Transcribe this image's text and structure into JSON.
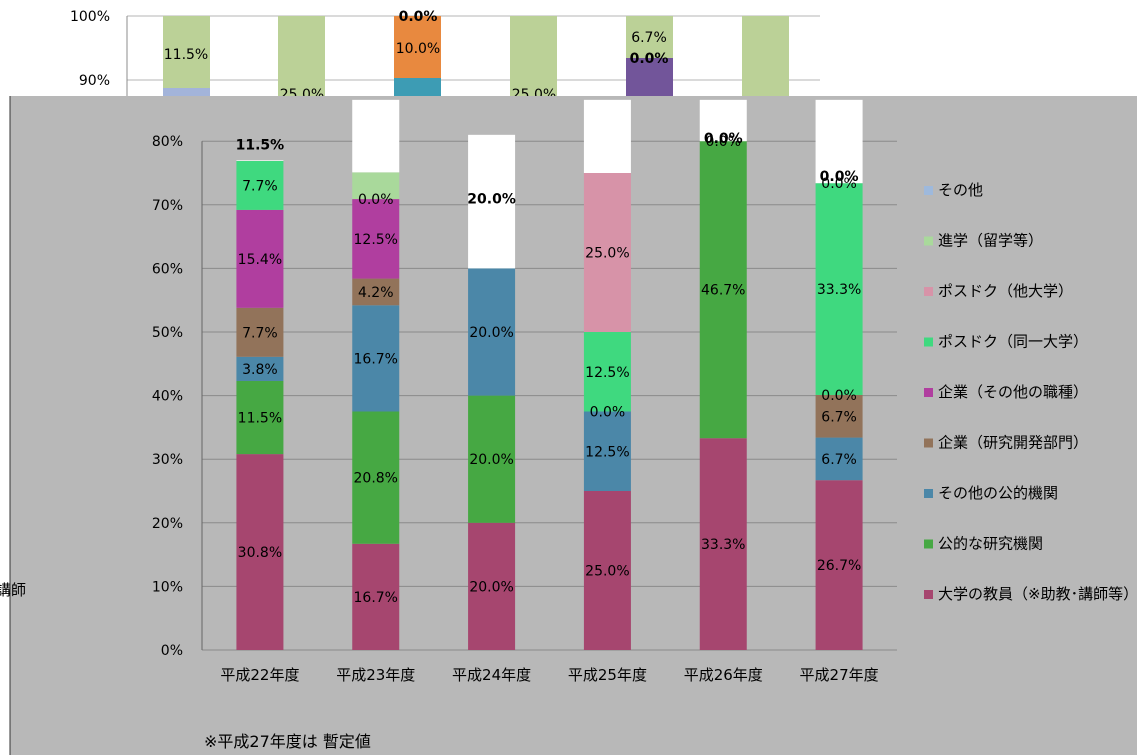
{
  "chart_data": {
    "type": "bar",
    "stacked": true,
    "categories": [
      "平成22年度",
      "平成23年度",
      "平成24年度",
      "平成25年度",
      "平成26年度",
      "平成27年度"
    ],
    "ylim": [
      0,
      100
    ],
    "y_ticks": [
      "0%",
      "10%",
      "20%",
      "30%",
      "40%",
      "50%",
      "60%",
      "70%",
      "80%",
      "90%",
      "100%"
    ],
    "series": [
      {
        "name": "大学の教員（※助教･講師等）",
        "color": "#A6466F",
        "values": [
          30.8,
          16.7,
          20.0,
          25.0,
          33.3,
          26.7
        ],
        "labels": [
          "30.8%",
          "16.7%",
          "20.0%",
          "25.0%",
          "33.3%",
          "26.7%"
        ]
      },
      {
        "name": "公的な研究機関",
        "color": "#46A843",
        "values": [
          11.5,
          20.8,
          20.0,
          0.0,
          46.7,
          0.0
        ],
        "labels": [
          "11.5%",
          "20.8%",
          "20.0%",
          "",
          "46.7%",
          ""
        ]
      },
      {
        "name": "その他の公的機関",
        "color": "#4B87A8",
        "values": [
          3.8,
          16.7,
          20.0,
          12.5,
          0.0,
          6.7
        ],
        "labels": [
          "3.8%",
          "16.7%",
          "20.0%",
          "12.5%",
          "",
          "6.7%"
        ]
      },
      {
        "name": "企業（研究開発部門）",
        "color": "#92735A",
        "values": [
          7.7,
          4.2,
          0.0,
          0.0,
          0.0,
          6.7
        ],
        "labels": [
          "7.7%",
          "4.2%",
          "",
          "0.0%",
          "",
          "6.7%"
        ]
      },
      {
        "name": "企業（その他の職種）",
        "color": "#B03E9F",
        "values": [
          15.4,
          12.5,
          0.0,
          0.0,
          0.0,
          0.0
        ],
        "labels": [
          "15.4%",
          "12.5%",
          "",
          "",
          "",
          "0.0%"
        ]
      },
      {
        "name": "ポスドク（同一大学）",
        "color": "#3FD97F",
        "values": [
          7.7,
          0.0,
          0.0,
          12.5,
          0.0,
          33.3
        ],
        "labels": [
          "7.7%",
          "0.0%",
          "",
          "12.5%",
          "0.0%",
          "33.3%"
        ]
      },
      {
        "name": "ポスドク（他大学）",
        "color": "#D793A8",
        "values": [
          0.0,
          0.0,
          0.0,
          25.0,
          0.0,
          0.0
        ],
        "labels": [
          "",
          "",
          "",
          "25.0%",
          "",
          "0.0%"
        ]
      },
      {
        "name": "進学（留学等）",
        "color": "#A9D99B",
        "values": [
          0.0,
          4.2,
          0.0,
          0.0,
          0.0,
          0.0
        ],
        "labels": [
          "",
          "",
          "",
          "",
          "",
          ""
        ]
      },
      {
        "name": "その他",
        "color": "#9EB9DC",
        "values": [
          0.0,
          0.0,
          0.0,
          0.0,
          0.0,
          0.0
        ],
        "labels": [
          "",
          "",
          "",
          "",
          "",
          ""
        ]
      }
    ],
    "overlay_labels": [
      {
        "cat": 0,
        "y": 79.5,
        "text": "11.5%"
      },
      {
        "cat": 2,
        "y": 71.0,
        "text": "20.0%"
      },
      {
        "cat": 4,
        "y": 80.5,
        "text": "0.0%"
      },
      {
        "cat": 5,
        "y": 74.5,
        "text": "0.0%"
      }
    ],
    "legend_position": "right"
  },
  "background_fragment": {
    "y_ticks": [
      "90%",
      "100%"
    ],
    "labels": [
      "11.5%",
      "25.0%",
      "0.0%",
      "10.0%",
      "25.0%",
      "6.7%",
      "0.0%"
    ]
  },
  "footnote": "※平成27年度は 暫定値",
  "left_fragment_text": "講師"
}
